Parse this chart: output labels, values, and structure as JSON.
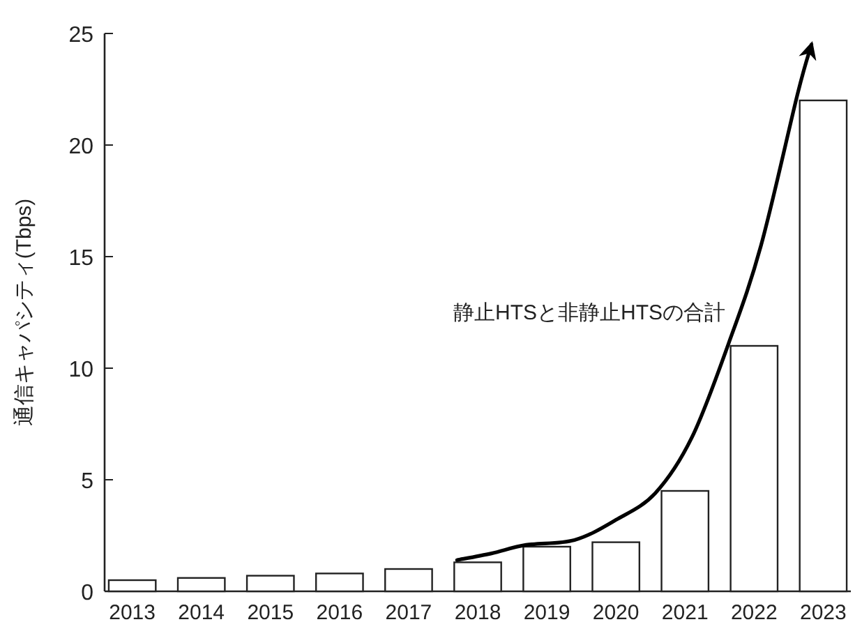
{
  "chart_data": {
    "type": "bar",
    "ylabel": "通信キャパシティ(Tbps)",
    "x": [
      2013,
      2014,
      2015,
      2016,
      2017,
      2018,
      2019,
      2020,
      2021,
      2022,
      2023
    ],
    "xlim": [
      2012.6,
      2023.4
    ],
    "xticks": [
      2013,
      2014,
      2015,
      2016,
      2017,
      2018,
      2019,
      2020,
      2021,
      2022,
      2023
    ],
    "ylim": [
      0,
      25
    ],
    "yticks": [
      0,
      5,
      10,
      15,
      20,
      25
    ],
    "grid": false,
    "series": [
      {
        "color": "#ffffff",
        "values": [
          0.5,
          0.6,
          0.7,
          0.8,
          1.0,
          1.3,
          2.0,
          2.2,
          4.5,
          11,
          22
        ]
      },
      {
        "type": "line",
        "name": "静止HTSと非静止HTSの合計",
        "color": "#000000",
        "x": [
          2017.7,
          2018.2,
          2018.7,
          2019.4,
          2020,
          2020.57,
          2021.1,
          2021.63,
          2022.1,
          2022.63,
          2022.83
        ],
        "values": [
          1.4,
          1.7,
          2.08,
          2.3,
          3.2,
          4.4,
          6.9,
          11.1,
          15.5,
          22.3,
          24.5
        ]
      }
    ]
  }
}
